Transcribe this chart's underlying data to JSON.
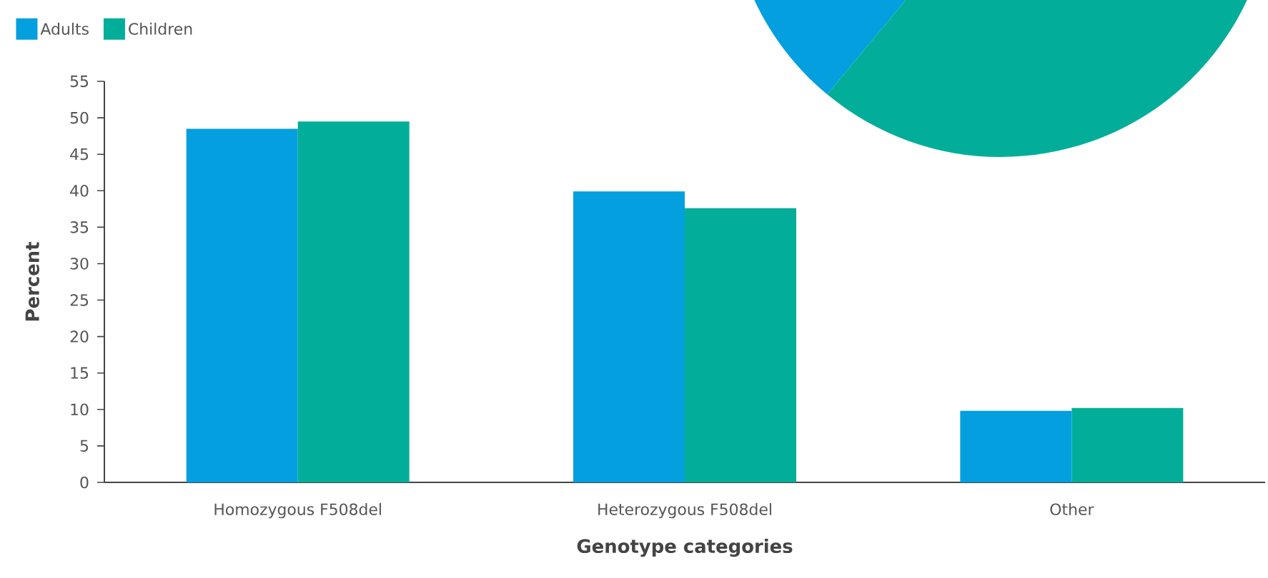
{
  "chart_data": {
    "type": "bar",
    "xlabel": "Genotype categories",
    "ylabel": "Percent",
    "categories": [
      "Homozygous F508del",
      "Heterozygous F508del",
      "Other"
    ],
    "series": [
      {
        "name": "Adults",
        "color": "#039fdf",
        "values": [
          48.5,
          39.9,
          9.8
        ]
      },
      {
        "name": "Children",
        "color": "#02ae99",
        "values": [
          49.5,
          37.6,
          10.2
        ]
      }
    ],
    "ylim": [
      0,
      55
    ],
    "yticks": [
      0,
      5,
      10,
      15,
      20,
      25,
      30,
      35,
      40,
      45,
      50,
      55
    ],
    "legend": "top left",
    "grid": false
  }
}
